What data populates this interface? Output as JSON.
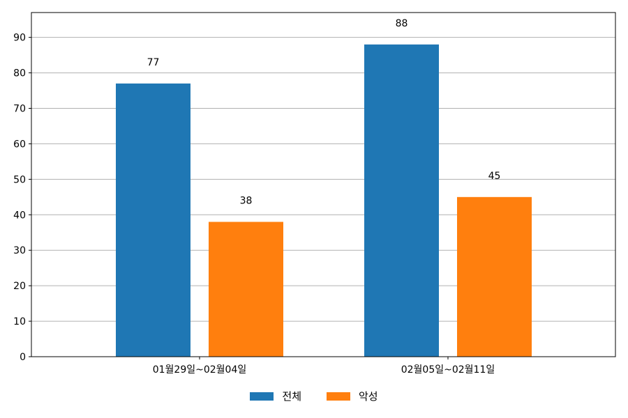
{
  "chart_data": {
    "type": "bar",
    "categories": [
      "01월29일~02월04일",
      "02월05일~02월11일"
    ],
    "series": [
      {
        "name": "전체",
        "values": [
          77,
          88
        ],
        "color": "#1f77b4"
      },
      {
        "name": "악성",
        "values": [
          38,
          45
        ],
        "color": "#ff7f0e"
      }
    ],
    "title": "",
    "xlabel": "",
    "ylabel": "",
    "ylim": [
      0,
      97
    ],
    "yticks": [
      0,
      10,
      20,
      30,
      40,
      50,
      60,
      70,
      80,
      90
    ],
    "grid": "horizontal",
    "legend_position": "bottom-center"
  }
}
